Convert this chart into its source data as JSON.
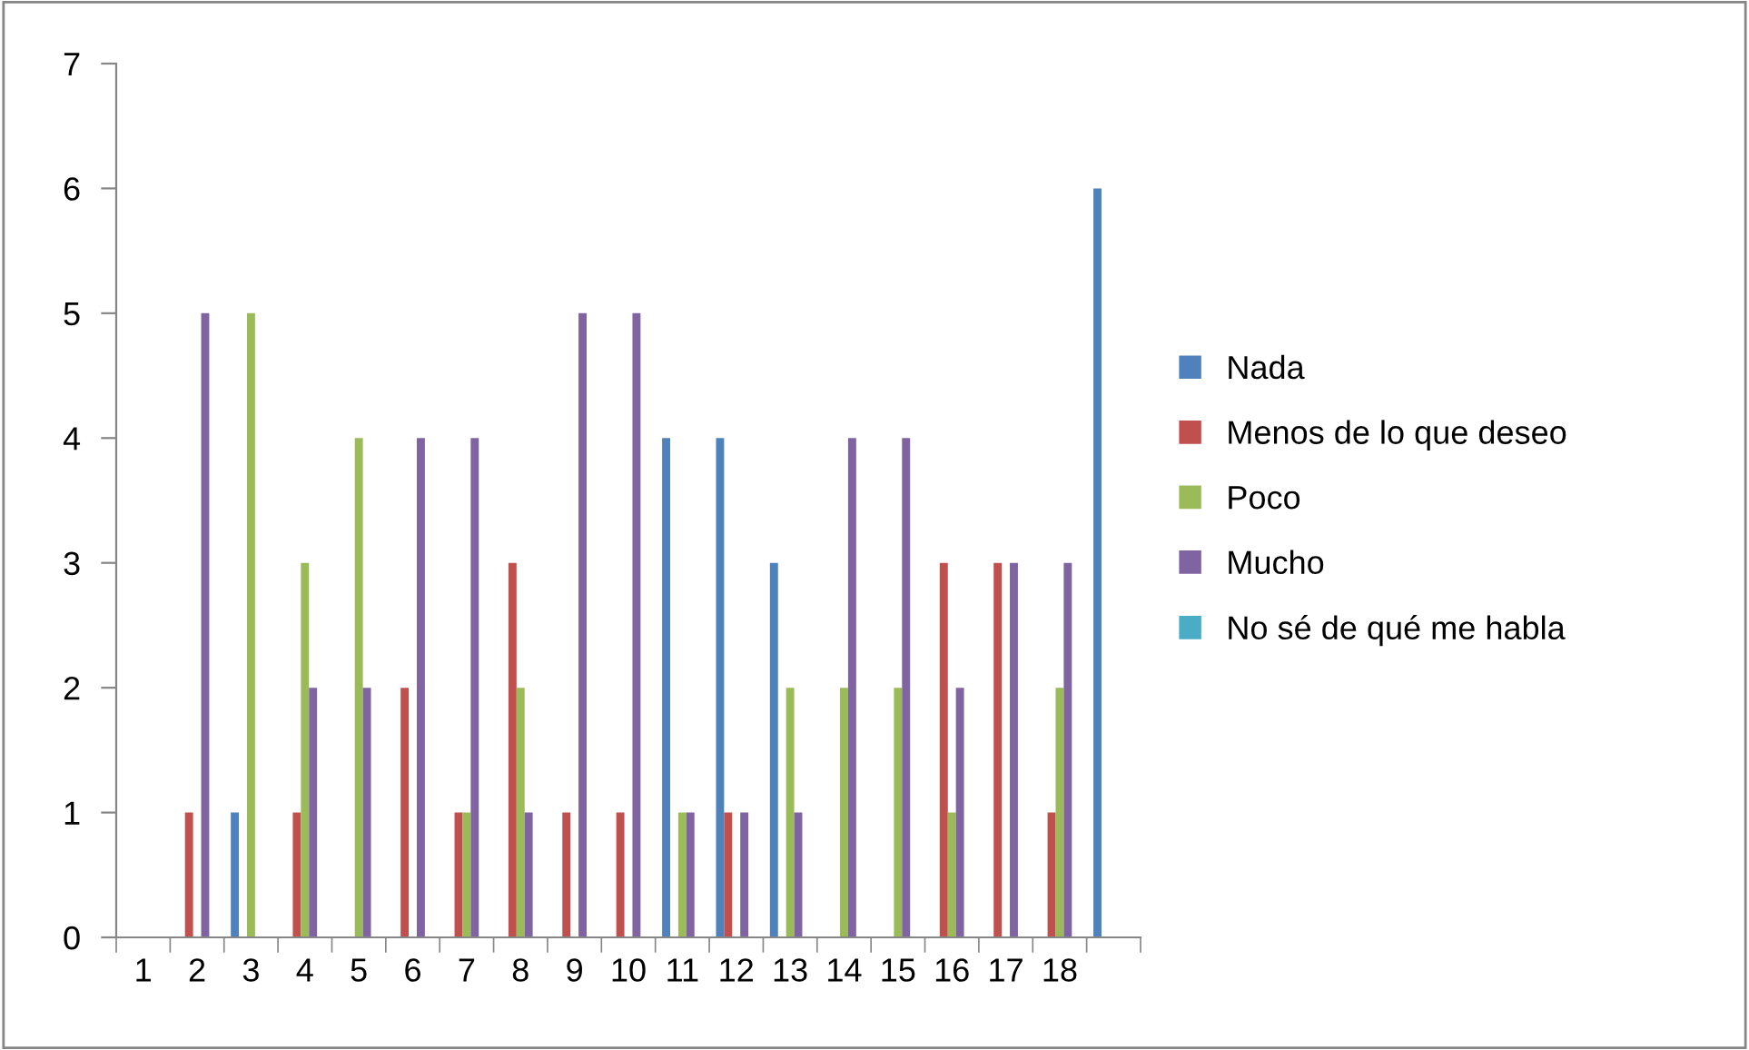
{
  "chart_data": {
    "type": "bar",
    "categories": [
      "1",
      "2",
      "3",
      "4",
      "5",
      "6",
      "7",
      "8",
      "9",
      "10",
      "11",
      "12",
      "13",
      "14",
      "15",
      "16",
      "17",
      "18",
      null
    ],
    "series": [
      {
        "name": "Nada",
        "color": "#4f81bd",
        "values": [
          0,
          0,
          1,
          0,
          0,
          0,
          0,
          0,
          0,
          0,
          4,
          4,
          3,
          0,
          0,
          0,
          0,
          0,
          6
        ]
      },
      {
        "name": "Menos de lo que deseo",
        "color": "#c0504d",
        "values": [
          0,
          1,
          0,
          1,
          0,
          2,
          1,
          3,
          1,
          1,
          0,
          1,
          0,
          0,
          0,
          3,
          3,
          1,
          0
        ]
      },
      {
        "name": "Poco",
        "color": "#9bbb59",
        "values": [
          0,
          0,
          5,
          3,
          4,
          0,
          1,
          2,
          0,
          0,
          1,
          0,
          2,
          2,
          2,
          1,
          0,
          2,
          0
        ]
      },
      {
        "name": "Mucho",
        "color": "#8064a2",
        "values": [
          0,
          5,
          0,
          2,
          2,
          4,
          4,
          1,
          5,
          5,
          1,
          1,
          1,
          4,
          4,
          2,
          3,
          3,
          0
        ]
      },
      {
        "name": "No sé de qué me habla",
        "color": "#4bacc6",
        "values": [
          0,
          0,
          0,
          0,
          0,
          0,
          0,
          0,
          0,
          0,
          0,
          0,
          0,
          0,
          0,
          0,
          0,
          0,
          0
        ]
      }
    ],
    "ylim": [
      0,
      7
    ],
    "yticks": [
      0,
      1,
      2,
      3,
      4,
      5,
      6,
      7
    ],
    "grid": false,
    "legend": "right"
  }
}
